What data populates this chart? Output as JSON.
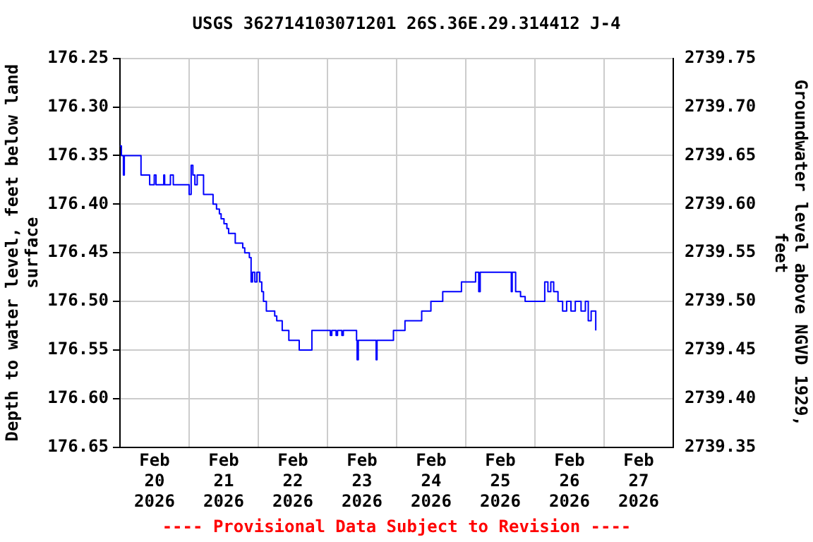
{
  "chart_data": {
    "type": "step",
    "title": "USGS 362714103071201 26S.36E.29.314412 J-4",
    "ylabel": "Depth to water level, feet below land surface",
    "y2label": "Groundwater level above NGVD 1929, feet",
    "annotations": [
      "---- Provisional Data Subject to Revision ----"
    ],
    "grid": true,
    "legend": false,
    "marker": "none",
    "line_style": "solid",
    "xlim": [
      "2026-02-20",
      "2026-02-28"
    ],
    "xticks": [
      {
        "value": "2026-02-20T12:00",
        "label": "Feb 20 2026"
      },
      {
        "value": "2026-02-21",
        "label": null
      },
      {
        "value": "2026-02-21T12:00",
        "label": "Feb 21 2026"
      },
      {
        "value": "2026-02-22",
        "label": null
      },
      {
        "value": "2026-02-22T12:00",
        "label": "Feb 22 2026"
      },
      {
        "value": "2026-02-23",
        "label": null
      },
      {
        "value": "2026-02-23T12:00",
        "label": "Feb 23 2026"
      },
      {
        "value": "2026-02-24",
        "label": null
      },
      {
        "value": "2026-02-24T12:00",
        "label": "Feb 24 2026"
      },
      {
        "value": "2026-02-25",
        "label": null
      },
      {
        "value": "2026-02-25T12:00",
        "label": "Feb 25 2026"
      },
      {
        "value": "2026-02-26",
        "label": null
      },
      {
        "value": "2026-02-26T12:00",
        "label": "Feb 26 2026"
      },
      {
        "value": "2026-02-27",
        "label": null
      },
      {
        "value": "2026-02-27T12:00",
        "label": "Feb 27 2026"
      }
    ],
    "ylim": [
      176.65,
      176.25
    ],
    "yticks": [
      {
        "value": 176.25,
        "label": "176.25"
      },
      {
        "value": 176.3,
        "label": "176.30"
      },
      {
        "value": 176.35,
        "label": "176.35"
      },
      {
        "value": 176.4,
        "label": "176.40"
      },
      {
        "value": 176.45,
        "label": "176.45"
      },
      {
        "value": 176.5,
        "label": "176.50"
      },
      {
        "value": 176.55,
        "label": "176.55"
      },
      {
        "value": 176.6,
        "label": "176.60"
      },
      {
        "value": 176.65,
        "label": "176.65"
      }
    ],
    "y2lim": [
      2739.35,
      2739.75
    ],
    "y2ticks": [
      {
        "value": 2739.35,
        "label": "2739.35"
      },
      {
        "value": 2739.4,
        "label": "2739.40"
      },
      {
        "value": 2739.45,
        "label": "2739.45"
      },
      {
        "value": 2739.5,
        "label": "2739.50"
      },
      {
        "value": 2739.55,
        "label": "2739.55"
      },
      {
        "value": 2739.6,
        "label": "2739.60"
      },
      {
        "value": 2739.65,
        "label": "2739.65"
      },
      {
        "value": 2739.7,
        "label": "2739.70"
      },
      {
        "value": 2739.75,
        "label": "2739.75"
      }
    ],
    "series": [
      {
        "color": "#0000ff",
        "x": [
          "2026-02-20T00:00",
          "2026-02-20T00:30",
          "2026-02-20T01:12",
          "2026-02-20T01:30",
          "2026-02-20T07:18",
          "2026-02-20T10:18",
          "2026-02-20T11:54",
          "2026-02-20T12:30",
          "2026-02-20T15:12",
          "2026-02-20T15:30",
          "2026-02-20T17:30",
          "2026-02-20T18:30",
          "2026-02-21T00:00",
          "2026-02-21T00:42",
          "2026-02-21T01:18",
          "2026-02-21T02:00",
          "2026-02-21T02:48",
          "2026-02-21T05:00",
          "2026-02-21T08:18",
          "2026-02-21T09:30",
          "2026-02-21T10:30",
          "2026-02-21T11:06",
          "2026-02-21T12:06",
          "2026-02-21T13:06",
          "2026-02-21T13:42",
          "2026-02-21T16:00",
          "2026-02-21T18:36",
          "2026-02-21T19:18",
          "2026-02-21T20:54",
          "2026-02-21T21:30",
          "2026-02-21T22:00",
          "2026-02-21T22:48",
          "2026-02-21T23:30",
          "2026-02-22T00:30",
          "2026-02-22T01:12",
          "2026-02-22T01:48",
          "2026-02-22T02:48",
          "2026-02-22T05:42",
          "2026-02-22T06:24",
          "2026-02-22T08:18",
          "2026-02-22T10:36",
          "2026-02-22T14:12",
          "2026-02-22T18:36",
          "2026-02-23T01:00",
          "2026-02-23T01:30",
          "2026-02-23T03:00",
          "2026-02-23T03:30",
          "2026-02-23T05:00",
          "2026-02-23T05:30",
          "2026-02-23T10:06",
          "2026-02-23T10:18",
          "2026-02-23T10:42",
          "2026-02-23T16:54",
          "2026-02-23T17:12",
          "2026-02-23T22:54",
          "2026-02-24T02:54",
          "2026-02-24T08:42",
          "2026-02-24T11:54",
          "2026-02-24T16:00",
          "2026-02-24T22:30",
          "2026-02-25T03:24",
          "2026-02-25T04:30",
          "2026-02-25T05:00",
          "2026-02-25T15:48",
          "2026-02-25T16:06",
          "2026-02-25T17:18",
          "2026-02-25T19:00",
          "2026-02-25T20:36",
          "2026-02-26T03:24",
          "2026-02-26T04:30",
          "2026-02-26T05:30",
          "2026-02-26T06:30",
          "2026-02-26T08:00",
          "2026-02-26T09:36",
          "2026-02-26T11:00",
          "2026-02-26T12:30",
          "2026-02-26T14:00",
          "2026-02-26T16:00",
          "2026-02-26T17:30",
          "2026-02-26T18:30",
          "2026-02-26T19:30",
          "2026-02-26T20:48",
          "2026-02-26T21:06"
        ],
        "values": [
          176.34,
          176.35,
          176.37,
          176.35,
          176.37,
          176.38,
          176.37,
          176.38,
          176.37,
          176.38,
          176.37,
          176.38,
          176.39,
          176.36,
          176.37,
          176.38,
          176.37,
          176.39,
          176.4,
          176.405,
          176.41,
          176.415,
          176.42,
          176.425,
          176.43,
          176.44,
          176.445,
          176.45,
          176.455,
          176.48,
          176.47,
          176.48,
          176.47,
          176.48,
          176.49,
          176.5,
          176.51,
          176.515,
          176.52,
          176.53,
          176.54,
          176.55,
          176.53,
          176.535,
          176.53,
          176.535,
          176.53,
          176.535,
          176.53,
          176.54,
          176.56,
          176.54,
          176.56,
          176.54,
          176.53,
          176.52,
          176.51,
          176.5,
          176.49,
          176.48,
          176.47,
          176.49,
          176.47,
          176.49,
          176.47,
          176.49,
          176.495,
          176.5,
          176.48,
          176.49,
          176.48,
          176.49,
          176.5,
          176.51,
          176.5,
          176.51,
          176.5,
          176.51,
          176.5,
          176.52,
          176.51,
          176.51,
          176.53
        ]
      }
    ]
  }
}
